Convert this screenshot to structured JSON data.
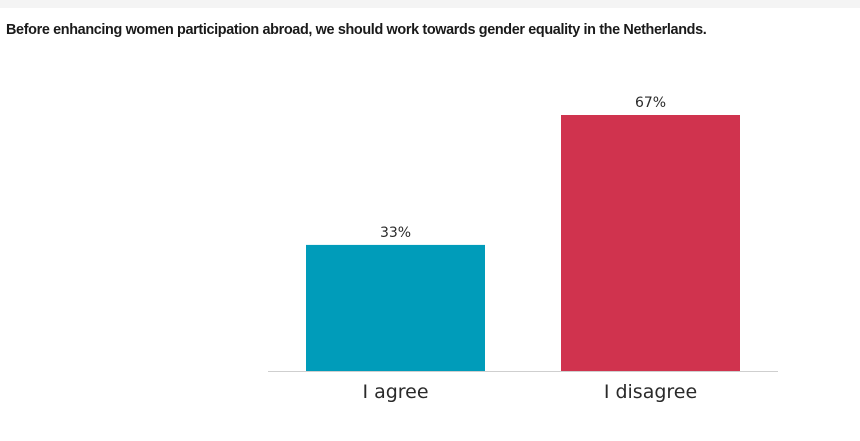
{
  "chart_data": {
    "type": "bar",
    "title": "Before enhancing women participation abroad, we should work towards gender equality in the Netherlands.",
    "categories": [
      "I agree",
      "I disagree"
    ],
    "values": [
      33,
      67
    ],
    "data_labels": [
      "33%",
      "67%"
    ],
    "colors": [
      "#009cba",
      "#d0334e"
    ],
    "axis_color": "#cfcfcf",
    "ylim": [
      0,
      100
    ],
    "grid": false,
    "xlabel": "",
    "ylabel": ""
  }
}
